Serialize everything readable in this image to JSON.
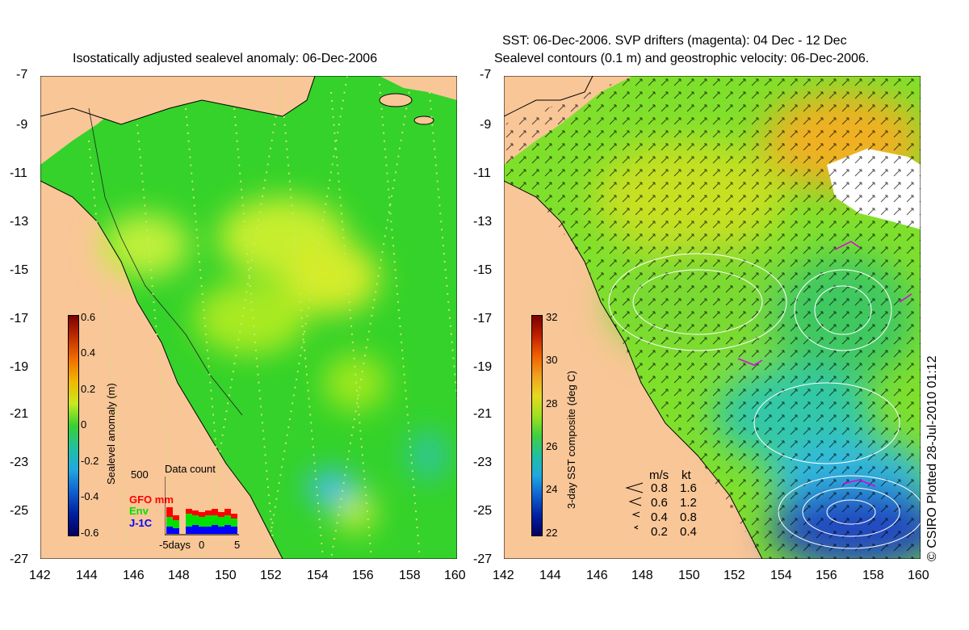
{
  "left_panel": {
    "title": "Isostatically adjusted sealevel anomaly: 06-Dec-2006",
    "colorbar": {
      "label": "Sealevel anomaly (m)",
      "ticks": [
        "0.6",
        "0.4",
        "0.2",
        "0",
        "-0.2",
        "-0.4",
        "-0.6"
      ]
    },
    "data_count": {
      "title": "Data count",
      "ymax_label": "500",
      "series": [
        {
          "name": "GFO mm",
          "color": "#ff0000"
        },
        {
          "name": "Env",
          "color": "#00e000"
        },
        {
          "name": "J-1C",
          "color": "#0000ff"
        }
      ],
      "x_ticks": [
        "-5days",
        "0",
        "5"
      ]
    }
  },
  "right_panel": {
    "title_line1": "SST: 06-Dec-2006. SVP drifters (magenta): 04 Dec - 12 Dec",
    "title_line2": "Sealevel contours (0.1 m) and geostrophic velocity: 06-Dec-2006.",
    "colorbar": {
      "label": "3-day SST composite (deg C)",
      "ticks": [
        "32",
        "30",
        "28",
        "26",
        "24",
        "22"
      ]
    },
    "velocity_legend": {
      "header_ms": "m/s",
      "header_kt": "kt",
      "rows": [
        {
          "ms": "0.8",
          "kt": "1.6"
        },
        {
          "ms": "0.6",
          "kt": "1.2"
        },
        {
          "ms": "0.4",
          "kt": "0.8"
        },
        {
          "ms": "0.2",
          "kt": "0.4"
        }
      ]
    }
  },
  "axes": {
    "lat_ticks": [
      "-7",
      "-9",
      "-11",
      "-13",
      "-15",
      "-17",
      "-19",
      "-21",
      "-23",
      "-25",
      "-27"
    ],
    "lon_ticks": [
      "142",
      "144",
      "146",
      "148",
      "150",
      "152",
      "154",
      "156",
      "158",
      "160"
    ]
  },
  "credit": "© CSIRO Plotted 28-Jul-2010 01:12",
  "colors": {
    "land": "#f9c697",
    "ocean_green": "#39d62b",
    "lime": "#9ee81a",
    "yellow": "#d8ee2a",
    "cyan": "#2dc6c0",
    "blue": "#1d3fc4",
    "orange": "#f0a020"
  }
}
